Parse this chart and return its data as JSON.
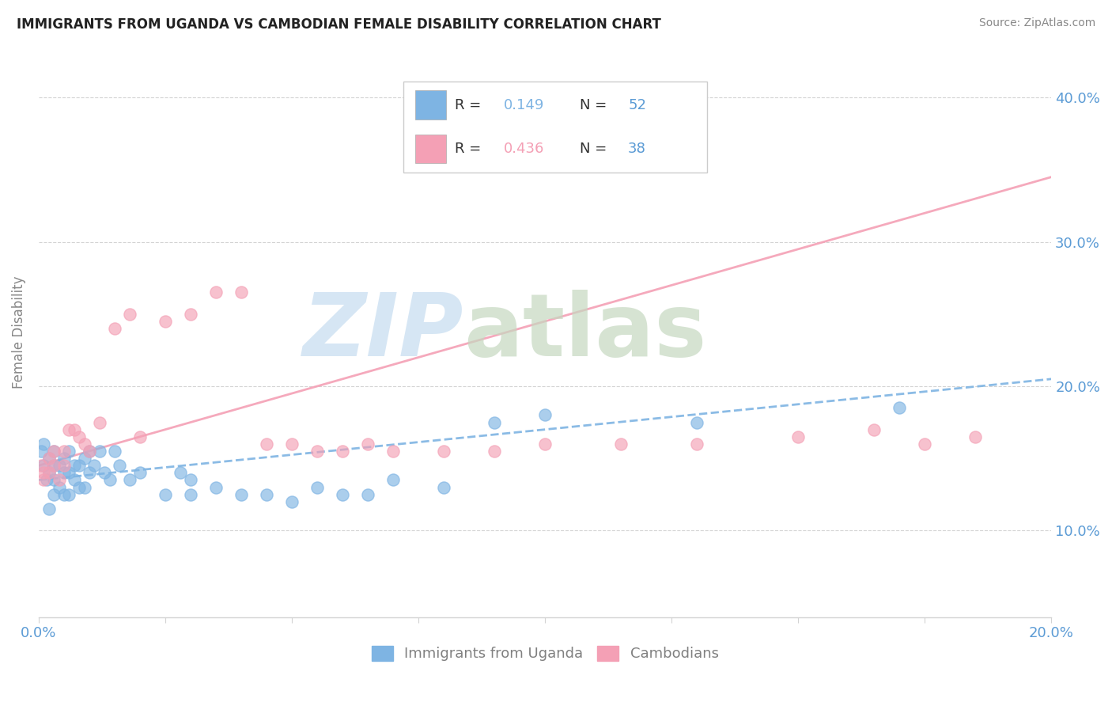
{
  "title": "IMMIGRANTS FROM UGANDA VS CAMBODIAN FEMALE DISABILITY CORRELATION CHART",
  "source": "Source: ZipAtlas.com",
  "ylabel": "Female Disability",
  "r_uganda": 0.149,
  "n_uganda": 52,
  "r_cambodian": 0.436,
  "n_cambodian": 38,
  "legend_label_1": "Immigrants from Uganda",
  "legend_label_2": "Cambodians",
  "color_uganda": "#7EB4E3",
  "color_cambodian": "#F4A0B5",
  "xlim": [
    0.0,
    0.2
  ],
  "ylim": [
    0.04,
    0.435
  ],
  "y_ticks": [
    0.1,
    0.2,
    0.3,
    0.4
  ],
  "uganda_x": [
    0.0005,
    0.001,
    0.001,
    0.0015,
    0.002,
    0.002,
    0.002,
    0.003,
    0.003,
    0.003,
    0.003,
    0.004,
    0.004,
    0.005,
    0.005,
    0.005,
    0.006,
    0.006,
    0.006,
    0.007,
    0.007,
    0.008,
    0.008,
    0.009,
    0.009,
    0.01,
    0.01,
    0.011,
    0.012,
    0.013,
    0.014,
    0.015,
    0.016,
    0.018,
    0.02,
    0.025,
    0.028,
    0.03,
    0.03,
    0.035,
    0.04,
    0.045,
    0.05,
    0.055,
    0.06,
    0.065,
    0.07,
    0.08,
    0.09,
    0.1,
    0.13,
    0.17
  ],
  "uganda_y": [
    0.155,
    0.145,
    0.16,
    0.135,
    0.15,
    0.14,
    0.115,
    0.155,
    0.145,
    0.135,
    0.125,
    0.145,
    0.13,
    0.14,
    0.15,
    0.125,
    0.155,
    0.14,
    0.125,
    0.145,
    0.135,
    0.145,
    0.13,
    0.15,
    0.13,
    0.155,
    0.14,
    0.145,
    0.155,
    0.14,
    0.135,
    0.155,
    0.145,
    0.135,
    0.14,
    0.125,
    0.14,
    0.135,
    0.125,
    0.13,
    0.125,
    0.125,
    0.12,
    0.13,
    0.125,
    0.125,
    0.135,
    0.13,
    0.175,
    0.18,
    0.175,
    0.185
  ],
  "cambodian_x": [
    0.0005,
    0.001,
    0.001,
    0.002,
    0.002,
    0.003,
    0.003,
    0.004,
    0.005,
    0.005,
    0.006,
    0.007,
    0.008,
    0.009,
    0.01,
    0.012,
    0.015,
    0.018,
    0.02,
    0.025,
    0.03,
    0.035,
    0.04,
    0.045,
    0.05,
    0.055,
    0.06,
    0.065,
    0.07,
    0.08,
    0.09,
    0.1,
    0.115,
    0.13,
    0.15,
    0.165,
    0.175,
    0.185
  ],
  "cambodian_y": [
    0.145,
    0.14,
    0.135,
    0.15,
    0.14,
    0.155,
    0.145,
    0.135,
    0.145,
    0.155,
    0.17,
    0.17,
    0.165,
    0.16,
    0.155,
    0.175,
    0.24,
    0.25,
    0.165,
    0.245,
    0.25,
    0.265,
    0.265,
    0.16,
    0.16,
    0.155,
    0.155,
    0.16,
    0.155,
    0.155,
    0.155,
    0.16,
    0.16,
    0.16,
    0.165,
    0.17,
    0.16,
    0.165
  ],
  "line_cambodian_x0": 0.0,
  "line_cambodian_y0": 0.145,
  "line_cambodian_x1": 0.2,
  "line_cambodian_y1": 0.345,
  "line_uganda_x0": 0.0,
  "line_uganda_y0": 0.135,
  "line_uganda_x1": 0.2,
  "line_uganda_y1": 0.205
}
